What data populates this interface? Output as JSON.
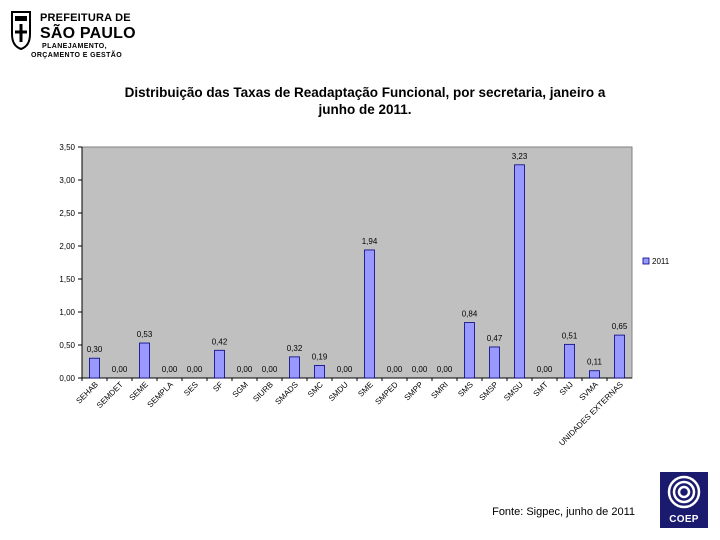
{
  "header": {
    "logo_line1": "PREFEITURA DE",
    "logo_line2": "SÃO PAULO",
    "logo_line3": "PLANEJAMENTO,",
    "logo_line4": "ORÇAMENTO E GESTÃO"
  },
  "footer": {
    "source": "Fonte: Sigpec, junho de 2011",
    "coep_label": "COEP"
  },
  "colors": {
    "bar_fill": "#9999ff",
    "bar_stroke": "#000080",
    "plot_background": "#c0c0c0",
    "logo_background": "#1a1a6e"
  },
  "chart_data": {
    "type": "bar",
    "title": "Distribuição das Taxas de Readaptação Funcional, por secretaria, janeiro a junho de 2011.",
    "title_line1": "Distribuição das Taxas de Readaptação Funcional, por secretaria, janeiro a",
    "title_line2": "junho de 2011.",
    "xlabel": "",
    "ylabel": "",
    "ylim": [
      0,
      3.5
    ],
    "yticks": [
      "0,00",
      "0,50",
      "1,00",
      "1,50",
      "2,00",
      "2,50",
      "3,00",
      "3,50"
    ],
    "grid": false,
    "legend_position": "right",
    "categories": [
      "SEHAB",
      "SEMDET",
      "SEME",
      "SEMPLA",
      "SES",
      "SF",
      "SGM",
      "SIURB",
      "SMADS",
      "SMC",
      "SMDU",
      "SME",
      "SMPED",
      "SMPP",
      "SMRI",
      "SMS",
      "SMSP",
      "SMSU",
      "SMT",
      "SNJ",
      "SVMA",
      "UNIDADES EXTERNAS"
    ],
    "series": [
      {
        "name": "2011",
        "values": [
          0.3,
          0.0,
          0.53,
          0.0,
          0.0,
          0.42,
          0.0,
          0.0,
          0.32,
          0.19,
          0.0,
          1.94,
          0.0,
          0.0,
          0.0,
          0.84,
          0.47,
          3.23,
          0.0,
          0.51,
          0.11,
          0.65
        ],
        "labels": [
          "0,30",
          "0,00",
          "0,53",
          "0,00",
          "0,00",
          "0,42",
          "0,00",
          "0,00",
          "0,32",
          "0,19",
          "0,00",
          "1,94",
          "0,00",
          "0,00",
          "0,00",
          "0,84",
          "0,47",
          "3,23",
          "0,00",
          "0,51",
          "0,11",
          "0,65"
        ]
      }
    ]
  }
}
